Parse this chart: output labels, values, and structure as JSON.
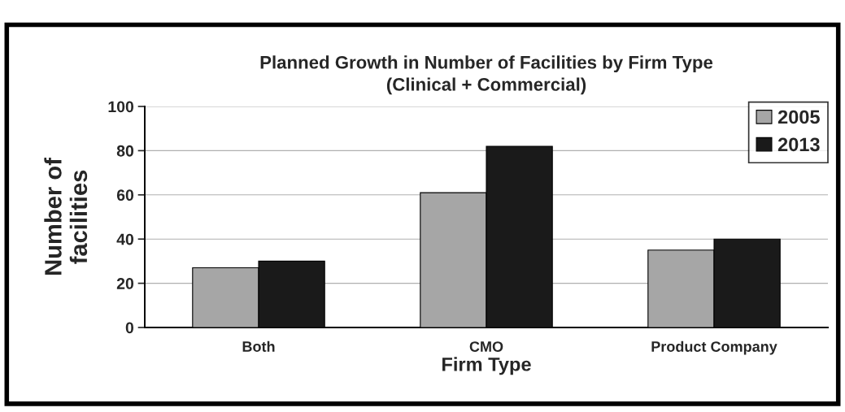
{
  "chart_data": {
    "type": "bar",
    "title": "Planned Growth in Number of Facilities by Firm Type\n(Clinical + Commercial)",
    "xlabel": "Firm Type",
    "ylabel": "Number of\nfacilities",
    "categories": [
      "Both",
      "CMO",
      "Product Company"
    ],
    "series": [
      {
        "name": "2005",
        "color": "#a6a6a6",
        "values": [
          27,
          61,
          35
        ]
      },
      {
        "name": "2013",
        "color": "#1a1a1a",
        "values": [
          30,
          82,
          40
        ]
      }
    ],
    "ylim": [
      0,
      100
    ],
    "yticks": [
      0,
      20,
      40,
      60,
      80,
      100
    ],
    "grid": "y",
    "legend": "top right"
  }
}
